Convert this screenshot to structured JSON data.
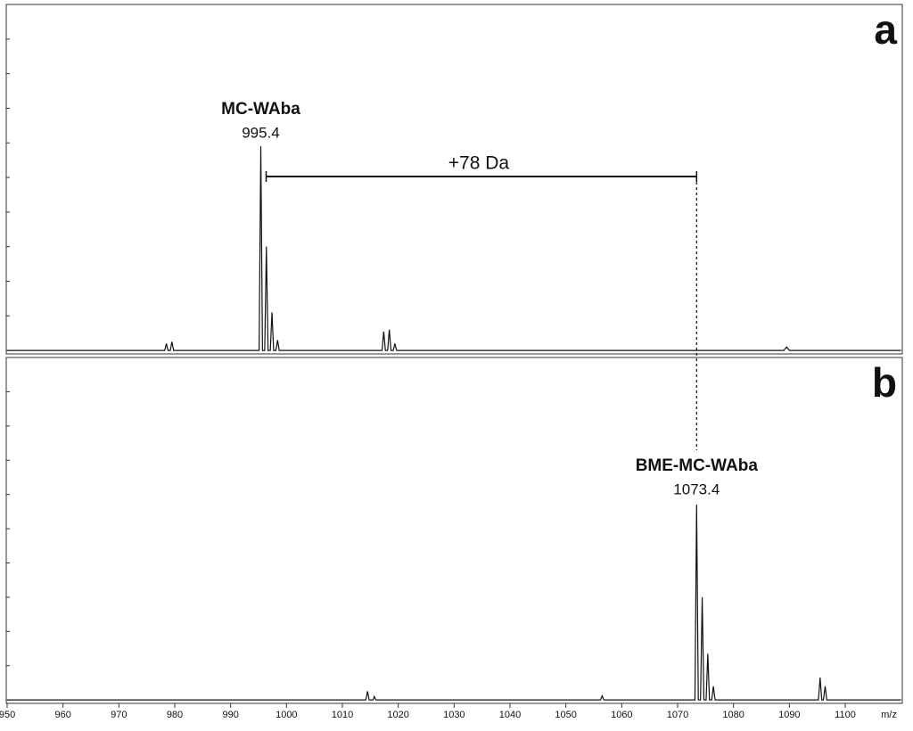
{
  "chart_data": [
    {
      "type": "line",
      "panel": "a",
      "color": "#111111",
      "x": [
        950,
        978.2,
        978.5,
        978.8,
        979.2,
        979.5,
        979.8,
        995.1,
        995.4,
        995.7,
        996.1,
        996.4,
        996.7,
        997.1,
        997.4,
        997.7,
        998.1,
        998.4,
        998.7,
        1017.1,
        1017.4,
        1017.7,
        1018.1,
        1018.4,
        1018.7,
        1019.1,
        1019.4,
        1019.7,
        1089,
        1089.5,
        1090,
        1110
      ],
      "values": [
        0,
        0,
        2,
        0,
        0,
        2.5,
        0,
        0,
        59,
        0,
        0,
        30,
        0,
        0,
        11,
        0,
        0,
        3,
        0,
        0,
        5.5,
        0,
        0,
        6,
        0,
        0,
        2,
        0,
        0,
        1,
        0,
        0
      ],
      "xlim": [
        950,
        1110
      ],
      "ylim": [
        -1,
        100
      ],
      "yticks": [
        0,
        10,
        20,
        30,
        40,
        50,
        60,
        70,
        80,
        90
      ],
      "peak_label": {
        "text": "MC-WAba",
        "mz": 995.4
      },
      "shift_label": "+78 Da"
    },
    {
      "type": "line",
      "panel": "b",
      "color": "#111111",
      "x": [
        950,
        1014.2,
        1014.5,
        1014.8,
        1015.5,
        1015.7,
        1016,
        1056.2,
        1056.5,
        1056.8,
        1073.1,
        1073.4,
        1073.7,
        1074.1,
        1074.4,
        1074.7,
        1075.1,
        1075.4,
        1075.7,
        1076.1,
        1076.4,
        1076.7,
        1095.2,
        1095.5,
        1095.8,
        1096.1,
        1096.4,
        1096.7,
        1110
      ],
      "values": [
        0,
        0,
        2.5,
        0,
        0,
        1,
        0,
        0,
        1.2,
        0,
        0,
        57,
        0,
        0,
        30,
        0,
        0,
        13.5,
        0,
        0,
        4,
        0,
        0,
        6.5,
        0,
        0,
        4,
        0,
        0
      ],
      "xlim": [
        950,
        1110
      ],
      "ylim": [
        -1,
        100
      ],
      "yticks": [
        0,
        10,
        20,
        30,
        40,
        50,
        60,
        70,
        80,
        90
      ],
      "xticks": [
        950,
        960,
        970,
        980,
        990,
        1000,
        1010,
        1020,
        1030,
        1040,
        1050,
        1060,
        1070,
        1080,
        1090,
        1100
      ],
      "xlabel": "m/z",
      "peak_label": {
        "text": "BME-MC-WAba",
        "mz": 1073.4
      }
    }
  ]
}
